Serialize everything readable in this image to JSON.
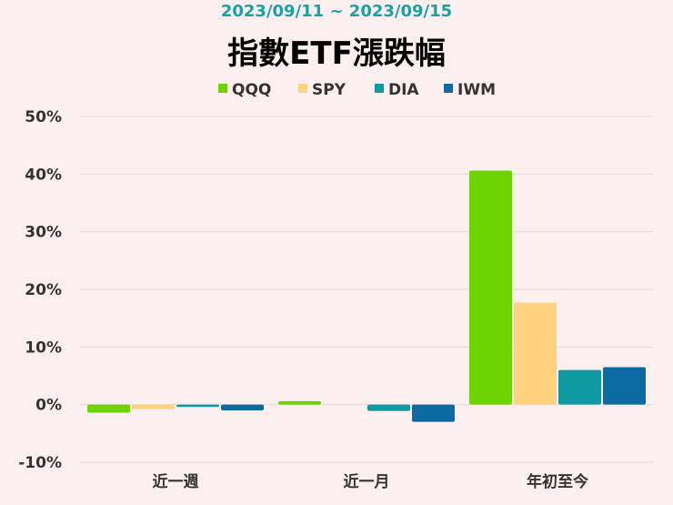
{
  "chart_data": {
    "type": "bar",
    "subtitle": "2023/09/11 ~ 2023/09/15",
    "title": "指數ETF漲跌幅",
    "categories": [
      "近一週",
      "近一月",
      "年初至今"
    ],
    "series": [
      {
        "name": "QQQ",
        "color": "#6dd400",
        "values": [
          -1.4,
          0.6,
          40.6
        ]
      },
      {
        "name": "SPY",
        "color": "#ffd27f",
        "values": [
          -0.8,
          0.0,
          17.7
        ]
      },
      {
        "name": "DIA",
        "color": "#0e9aa0",
        "values": [
          -0.4,
          -1.1,
          6.0
        ]
      },
      {
        "name": "IWM",
        "color": "#0b6aa2",
        "values": [
          -1.0,
          -3.0,
          6.5
        ]
      }
    ],
    "ylim": [
      -10,
      50
    ],
    "yticks": [
      "50%",
      "40%",
      "30%",
      "20%",
      "10%",
      "0%",
      "-10%"
    ],
    "ytick_values": [
      50,
      40,
      30,
      20,
      10,
      0,
      -10
    ],
    "grid": true,
    "legend_position": "top"
  },
  "colors": {
    "background": "#fcefef",
    "subtitle": "#17a2a6",
    "title": "#000000",
    "axis_text": "#333333",
    "grid": "#e6d8d8"
  }
}
